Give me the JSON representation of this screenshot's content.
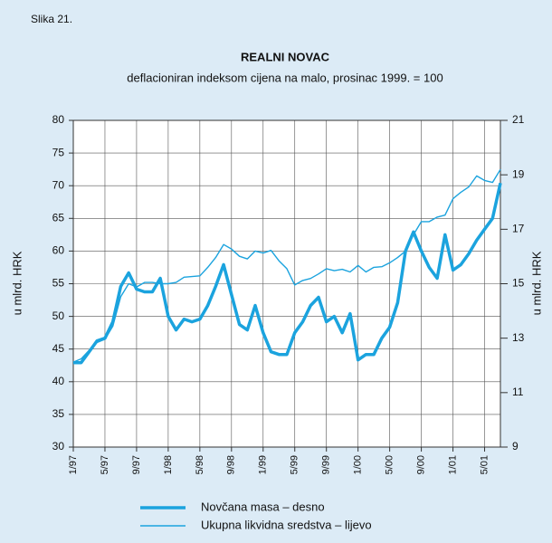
{
  "figure_label": "Slika 21.",
  "chart_data": {
    "type": "line",
    "title": "REALNI NOVAC",
    "subtitle": "deflacioniran indeksom cijena na malo, prosinac 1999. = 100",
    "ylabel": "u mlrd. HRK",
    "y2label": "u mlrd. HRK",
    "categories": [
      "1/97",
      null,
      null,
      null,
      "5/97",
      null,
      null,
      null,
      "9/97",
      null,
      null,
      null,
      "1/98",
      null,
      null,
      null,
      "5/98",
      null,
      null,
      null,
      "9/98",
      null,
      null,
      null,
      "1/99",
      null,
      null,
      null,
      "5/99",
      null,
      null,
      null,
      "9/99",
      null,
      null,
      null,
      "1/00",
      null,
      null,
      null,
      "5/00",
      null,
      null,
      null,
      "9/00",
      null,
      null,
      null,
      "1/01",
      null,
      null,
      null,
      "5/01",
      null,
      null
    ],
    "ylim": [
      30,
      80
    ],
    "yticks": [
      30,
      35,
      40,
      45,
      50,
      55,
      60,
      65,
      70,
      75,
      80
    ],
    "y2lim": [
      9,
      21
    ],
    "y2ticks": [
      9,
      11,
      13,
      15,
      17,
      19,
      21
    ],
    "grid": true,
    "series": [
      {
        "name": "Novčana masa – desno",
        "color": "#1ba3de",
        "axis": "y2",
        "values": [
          12.1,
          12.1,
          12.5,
          12.9,
          13.0,
          13.6,
          14.9,
          15.4,
          14.8,
          14.7,
          14.7,
          15.2,
          13.8,
          13.3,
          13.7,
          13.6,
          13.7,
          14.2,
          14.9,
          15.7,
          14.6,
          13.5,
          13.3,
          14.2,
          13.2,
          12.5,
          12.4,
          12.4,
          13.2,
          13.6,
          14.2,
          14.5,
          13.6,
          13.8,
          13.2,
          13.9,
          12.2,
          12.4,
          12.4,
          13.0,
          13.4,
          14.3,
          16.2,
          16.9,
          16.2,
          15.6,
          15.2,
          16.8,
          15.5,
          15.7,
          16.1,
          16.6,
          17.0,
          17.4,
          18.7
        ]
      },
      {
        "name": "Ukupna likvidna sredstva – lijevo",
        "color": "#1ba3de",
        "axis": "y",
        "values": [
          43,
          43.5,
          44.8,
          46,
          46.5,
          48.5,
          53,
          55,
          54.5,
          55.2,
          55.2,
          55,
          55,
          55.2,
          56,
          56.1,
          56.2,
          57.5,
          59,
          61,
          60.3,
          59.2,
          58.8,
          60,
          59.7,
          60.1,
          58.5,
          57.3,
          54.8,
          55.5,
          55.8,
          56.5,
          57.3,
          57,
          57.2,
          56.8,
          57.8,
          56.8,
          57.5,
          57.6,
          58.2,
          59,
          60,
          62.5,
          64.5,
          64.5,
          65.2,
          65.5,
          68,
          69,
          69.8,
          71.5,
          70.8,
          70.5,
          72.5
        ]
      }
    ]
  }
}
